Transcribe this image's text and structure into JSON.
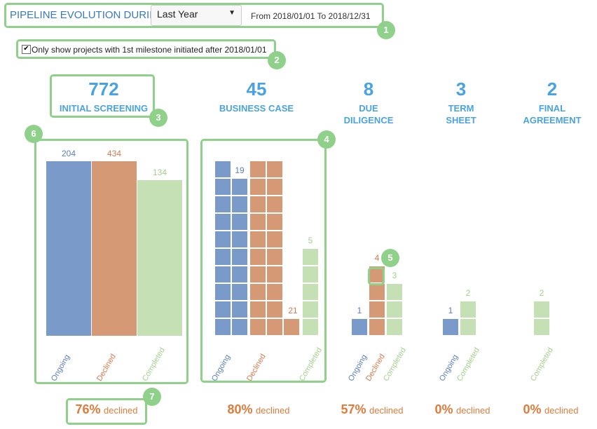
{
  "header": {
    "label": "PIPELINE EVOLUTION DURING",
    "period_select": "Last Year",
    "range": "From 2018/01/01 To 2018/12/31"
  },
  "filter": {
    "checked": true,
    "label": "Only show projects with 1st milestone initiated after 2018/01/01"
  },
  "markers": [
    "1",
    "2",
    "3",
    "4",
    "5",
    "6",
    "7"
  ],
  "colors": {
    "ongoing": "#7a9bc9",
    "declined": "#d69976",
    "completed": "#c5e0b4",
    "ongoing_text": "#5b7fb8",
    "declined_text": "#d47b4e",
    "completed_text": "#a6cf8e",
    "accent": "#4aa3df",
    "highlight": "#8fd18b"
  },
  "stages": [
    {
      "count": "772",
      "name": "INITIAL SCREENING",
      "declined_pct": "76%",
      "declined_text": "declined",
      "bars": {
        "ongoing": 204,
        "declined": 434,
        "completed": 134
      },
      "labels": {
        "ongoing": "204",
        "declined": "434",
        "completed": "134"
      }
    },
    {
      "count": "45",
      "name": "BUSINESS CASE",
      "declined_pct": "80%",
      "declined_text": "declined",
      "bars": {
        "ongoing": 19,
        "declined": 21,
        "completed": 5
      },
      "labels": {
        "ongoing": "19",
        "declined": "21",
        "completed": "5"
      }
    },
    {
      "count": "8",
      "name": "DUE DILIGENCE",
      "declined_pct": "57%",
      "declined_text": "declined",
      "bars": {
        "ongoing": 1,
        "declined": 4,
        "completed": 3
      },
      "labels": {
        "ongoing": "1",
        "declined": "4",
        "completed": "3"
      }
    },
    {
      "count": "3",
      "name": "TERM SHEET",
      "declined_pct": "0%",
      "declined_text": "declined",
      "bars": {
        "ongoing": 1,
        "completed": 2
      },
      "labels": {
        "ongoing": "1",
        "completed": "2"
      }
    },
    {
      "count": "2",
      "name": "FINAL AGREEMENT",
      "declined_pct": "0%",
      "declined_text": "declined",
      "bars": {
        "completed": 2
      },
      "labels": {
        "completed": "2"
      }
    }
  ],
  "axis": {
    "ongoing": "Ongoing",
    "declined": "Declined",
    "completed": "Completed"
  }
}
